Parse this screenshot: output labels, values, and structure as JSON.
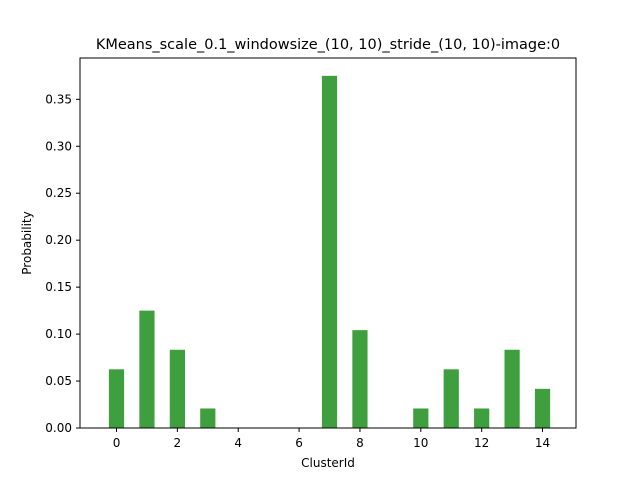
{
  "chart_data": {
    "type": "bar",
    "title": "KMeans_scale_0.1_windowsize_(10, 10)_stride_(10, 10)-image:0",
    "xlabel": "ClusterId",
    "ylabel": "Probability",
    "x": [
      0,
      1,
      2,
      3,
      4,
      5,
      6,
      7,
      8,
      9,
      10,
      11,
      12,
      13,
      14
    ],
    "values": [
      0.0625,
      0.125,
      0.0833,
      0.0208,
      0,
      0,
      0,
      0.375,
      0.1042,
      0,
      0.0208,
      0.0625,
      0.0208,
      0.0833,
      0.0417
    ],
    "xticks": [
      0,
      2,
      4,
      6,
      8,
      10,
      12,
      14
    ],
    "yticks": [
      0.0,
      0.05,
      0.1,
      0.15,
      0.2,
      0.25,
      0.3,
      0.35
    ],
    "ytick_labels": [
      "0.00",
      "0.05",
      "0.10",
      "0.15",
      "0.20",
      "0.25",
      "0.30",
      "0.35"
    ],
    "xlim": [
      -1.2,
      15.1
    ],
    "ylim": [
      0,
      0.394
    ],
    "bar_color": "#3f9f3f",
    "grid": false,
    "legend": "none"
  }
}
